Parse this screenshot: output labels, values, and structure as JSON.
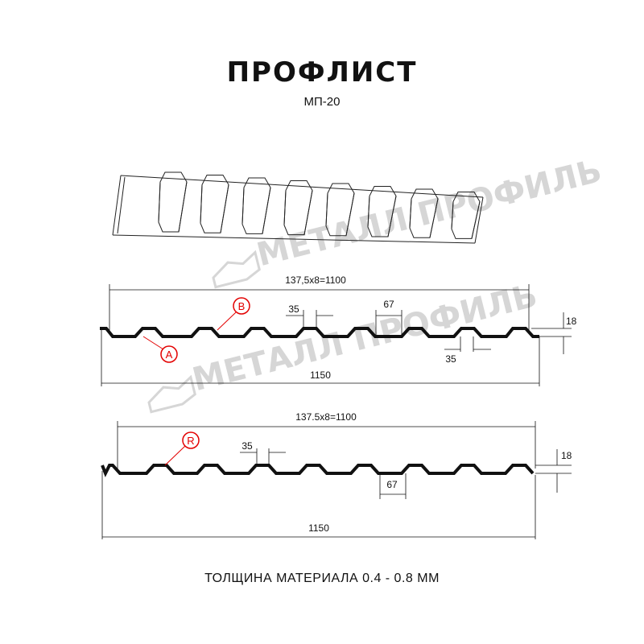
{
  "title": "ПРОФЛИСТ",
  "subtitle": "МП-20",
  "watermark": "МЕТАЛЛ ПРОФИЛЬ",
  "profile_a": {
    "pitch_label": "137,5x8=1100",
    "total_label": "1150",
    "top_width_label": "35",
    "bottom_width_label": "35",
    "rib_span_label": "67",
    "height_label": "18",
    "marker_a": "A",
    "marker_b": "B"
  },
  "profile_r": {
    "pitch_label": "137.5x8=1100",
    "total_label": "1150",
    "top_width_label": "35",
    "rib_span_label": "67",
    "height_label": "18",
    "marker_r": "R"
  },
  "footer": "ТОЛЩИНА МАТЕРИАЛА 0.4 - 0.8 ММ",
  "colors": {
    "line": "#111111",
    "marker": "#e30000",
    "watermark": "#d6d6d6"
  }
}
